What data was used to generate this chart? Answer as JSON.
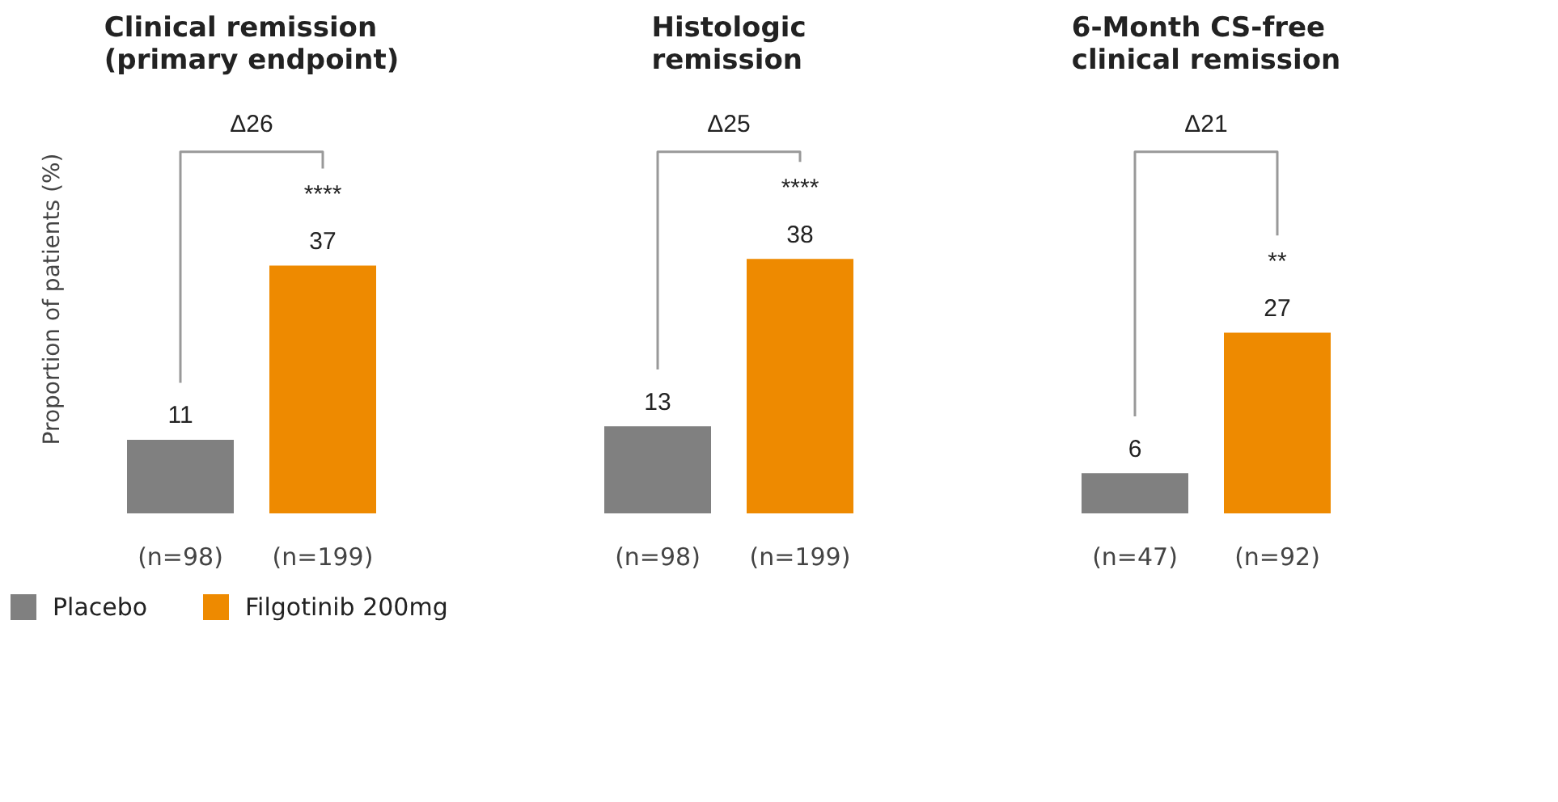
{
  "chart_data": [
    {
      "type": "bar",
      "title": "Clinical remission\n(primary endpoint)",
      "ylabel": "Proportion of patients (%)",
      "categories": [
        "(n=98)",
        "(n=199)"
      ],
      "data_labels": true,
      "legend": "bottom left",
      "annotations": [
        "Δ26",
        "****"
      ],
      "series": [
        {
          "name": "Placebo",
          "color": "#808080",
          "values": [
            11,
            null
          ]
        },
        {
          "name": "Filgotinib 200mg",
          "color": "#ee8a00",
          "values": [
            null,
            37
          ]
        }
      ]
    },
    {
      "type": "bar",
      "title": "Histologic\nremission",
      "categories": [
        "(n=98)",
        "(n=199)"
      ],
      "data_labels": true,
      "annotations": [
        "Δ25",
        "****"
      ],
      "series": [
        {
          "color": "#808080",
          "values": [
            13,
            null
          ]
        },
        {
          "color": "#ee8a00",
          "values": [
            null,
            38
          ]
        }
      ]
    },
    {
      "type": "bar",
      "title": "6-Month CS-free\nclinical remission",
      "categories": [
        "(n=47)",
        "(n=92)"
      ],
      "data_labels": true,
      "annotations": [
        "Δ21",
        "**"
      ],
      "series": [
        {
          "color": "#808080",
          "values": [
            6,
            null
          ]
        },
        {
          "color": "#ee8a00",
          "values": [
            null,
            27
          ]
        }
      ]
    }
  ]
}
